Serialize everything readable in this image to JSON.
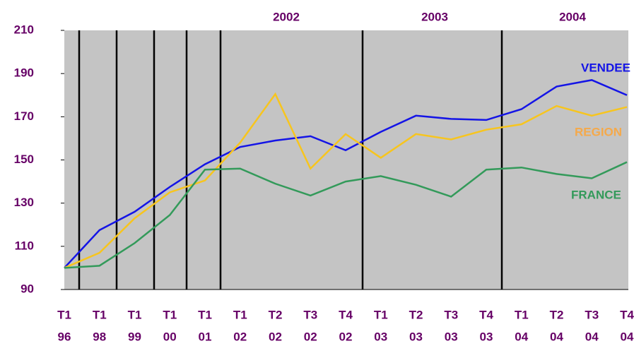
{
  "chart_data": {
    "type": "line",
    "annotations": [
      "2002",
      "2003",
      "2004"
    ],
    "categories": [
      [
        "T1",
        "96"
      ],
      [
        "T1",
        "98"
      ],
      [
        "T1",
        "99"
      ],
      [
        "T1",
        "00"
      ],
      [
        "T1",
        "01"
      ],
      [
        "T1",
        "02"
      ],
      [
        "T2",
        "02"
      ],
      [
        "T3",
        "02"
      ],
      [
        "T4",
        "02"
      ],
      [
        "T1",
        "03"
      ],
      [
        "T2",
        "03"
      ],
      [
        "T3",
        "03"
      ],
      [
        "T4",
        "03"
      ],
      [
        "T1",
        "04"
      ],
      [
        "T2",
        "04"
      ],
      [
        "T3",
        "04"
      ],
      [
        "T4",
        "04"
      ]
    ],
    "series": [
      {
        "name": "VENDEE",
        "color": "#1414e6",
        "label_color": "#1414e6",
        "values": [
          100,
          117.5,
          126,
          137.5,
          148,
          156,
          159,
          161,
          154.5,
          163,
          170.5,
          169,
          168.5,
          173.5,
          184,
          187,
          180
        ]
      },
      {
        "name": "REGION",
        "color": "#f7c51e",
        "label_color": "#f5a94a",
        "values": [
          100,
          107,
          123,
          135,
          140.5,
          158,
          180.5,
          146,
          162,
          151,
          162,
          159.5,
          164,
          166.5,
          175,
          170.5,
          174.5
        ]
      },
      {
        "name": "FRANCE",
        "color": "#339a5a",
        "label_color": "#339a5a",
        "values": [
          100,
          101,
          111.5,
          124.5,
          145.5,
          146,
          139,
          133.5,
          140,
          142.5,
          138.5,
          133,
          145.5,
          146.5,
          143.5,
          141.5,
          149
        ]
      }
    ],
    "ylim": [
      90,
      210
    ],
    "yticks": [
      90,
      110,
      130,
      150,
      170,
      190,
      210
    ],
    "grid": false
  }
}
